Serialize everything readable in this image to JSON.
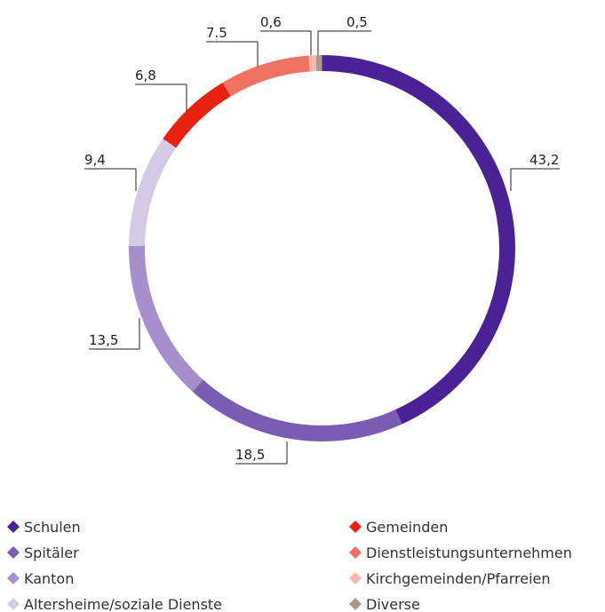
{
  "chart_data": {
    "type": "donut",
    "categories": [
      "Schulen",
      "Spitäler",
      "Kanton",
      "Altersheime/soziale Dienste",
      "Gemeinden",
      "Dienstleistungsunternehmen",
      "Kirchgemeinden/Pfarreien",
      "Diverse"
    ],
    "values": [
      43.2,
      18.5,
      13.5,
      9.4,
      6.8,
      7.5,
      0.6,
      0.5
    ],
    "value_labels": [
      "43,2",
      "18,5",
      "13,5",
      "9,4",
      "6,8",
      "7.5",
      "0,6",
      "0,5"
    ],
    "colors": [
      "#4b2296",
      "#7b5cb4",
      "#a68fcc",
      "#d3cae6",
      "#e8210e",
      "#f07262",
      "#f7b8b0",
      "#a89a8c"
    ]
  }
}
